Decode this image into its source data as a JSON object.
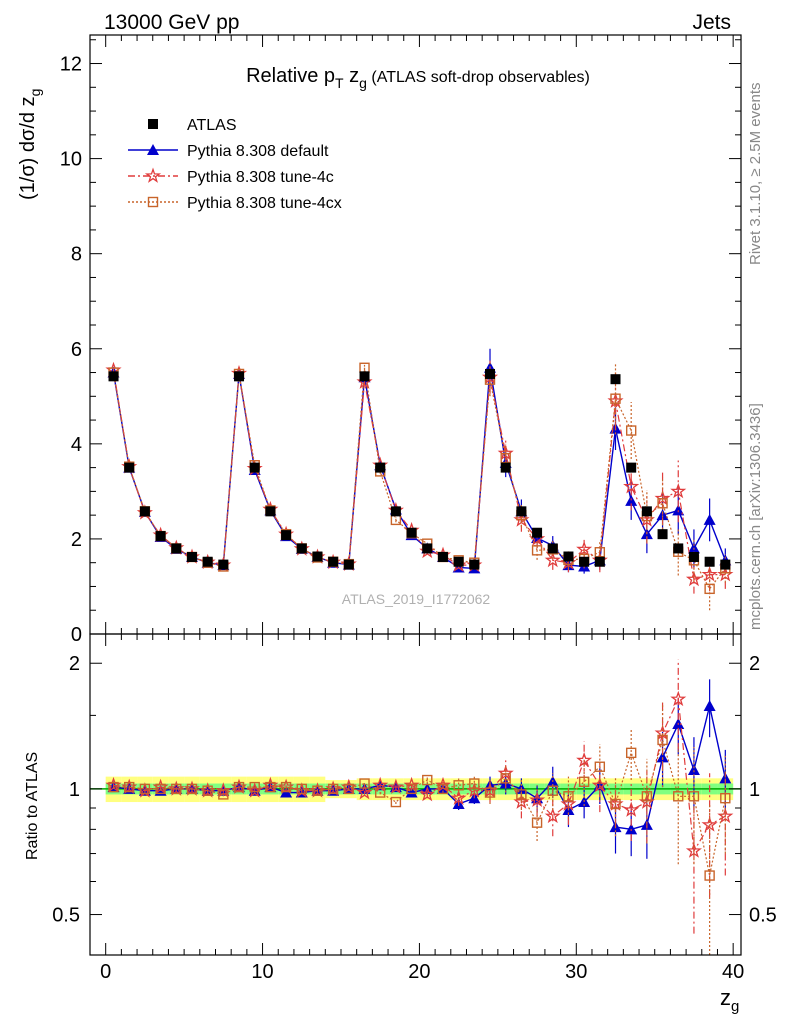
{
  "header": {
    "left": "13000 GeV pp",
    "right": "Jets"
  },
  "title": {
    "main": "Relative p",
    "sub": "T",
    "after": " z",
    "sub2": "g",
    "rest": " (ATLAS soft-drop observables)"
  },
  "side_labels": {
    "rivet": "Rivet 3.1.10, ≥ 2.5M events",
    "mcplots": "mcplots.cern.ch [arXiv:1306.3436]"
  },
  "watermark": "ATLAS_2019_I1772062",
  "colors": {
    "atlas": "#000000",
    "default": "#0000cc",
    "tune4c": "#e03c3c",
    "tune4cx": "#c8642a",
    "band_inner": "#80ff80",
    "band_outer": "#ffff80",
    "ratio_line": "#00aa00"
  },
  "chart_data": [
    {
      "type": "scatter",
      "ylabel_parts": [
        "(1/σ) dσ/d z",
        "g"
      ],
      "ylim": [
        0,
        12.6
      ],
      "yticks": [
        0,
        2,
        4,
        6,
        8,
        10,
        12
      ],
      "xlim": [
        -1,
        40.5
      ],
      "x": [
        0.5,
        1.5,
        2.5,
        3.5,
        4.5,
        5.5,
        6.5,
        7.5,
        8.5,
        9.5,
        10.5,
        11.5,
        12.5,
        13.5,
        14.5,
        15.5,
        16.5,
        17.5,
        18.5,
        19.5,
        20.5,
        21.5,
        22.5,
        23.5,
        24.5,
        25.5,
        26.5,
        27.5,
        28.5,
        29.5,
        30.5,
        31.5,
        32.5,
        33.5,
        34.5,
        35.5,
        36.5,
        37.5,
        38.5,
        39.5
      ],
      "legend": [
        "ATLAS",
        "Pythia 8.308 default",
        "Pythia 8.308 tune-4c",
        "Pythia 8.308 tune-4cx"
      ],
      "series": [
        {
          "name": "ATLAS",
          "marker": "square",
          "values": [
            5.42,
            3.5,
            2.58,
            2.06,
            1.8,
            1.62,
            1.52,
            1.46,
            5.42,
            3.5,
            2.58,
            2.08,
            1.8,
            1.63,
            1.52,
            1.46,
            5.42,
            3.5,
            2.58,
            2.13,
            1.8,
            1.62,
            1.52,
            1.46,
            5.47,
            3.5,
            2.58,
            2.13,
            1.8,
            1.63,
            1.52,
            1.52,
            5.36,
            3.5,
            2.58,
            2.1,
            1.8,
            1.62,
            1.52,
            1.46
          ]
        },
        {
          "name": "Pythia 8.308 default",
          "marker": "triangle",
          "values": [
            5.5,
            3.5,
            2.57,
            2.04,
            1.79,
            1.62,
            1.5,
            1.45,
            5.47,
            3.45,
            2.6,
            2.06,
            1.79,
            1.62,
            1.5,
            1.46,
            5.4,
            3.55,
            2.62,
            2.08,
            1.8,
            1.62,
            1.4,
            1.38,
            5.6,
            3.6,
            2.58,
            2.02,
            1.86,
            1.45,
            1.42,
            1.55,
            4.32,
            2.8,
            2.1,
            2.5,
            2.6,
            1.8,
            2.4,
            1.55
          ],
          "err": [
            0.05,
            0.05,
            0.05,
            0.04,
            0.04,
            0.04,
            0.04,
            0.04,
            0.06,
            0.05,
            0.05,
            0.04,
            0.04,
            0.04,
            0.04,
            0.04,
            0.06,
            0.05,
            0.05,
            0.04,
            0.04,
            0.04,
            0.06,
            0.06,
            0.4,
            0.3,
            0.25,
            0.2,
            0.2,
            0.15,
            0.15,
            0.2,
            0.45,
            0.4,
            0.4,
            0.45,
            0.5,
            0.4,
            0.45,
            0.25
          ]
        },
        {
          "name": "Pythia 8.308 tune-4c",
          "marker": "star",
          "values": [
            5.55,
            3.52,
            2.55,
            2.08,
            1.81,
            1.62,
            1.51,
            1.45,
            5.48,
            3.48,
            2.62,
            2.1,
            1.79,
            1.62,
            1.51,
            1.47,
            5.3,
            3.55,
            2.6,
            2.18,
            1.74,
            1.66,
            1.45,
            1.45,
            5.4,
            3.8,
            2.4,
            2.0,
            1.55,
            1.5,
            1.78,
            1.55,
            4.9,
            3.1,
            2.4,
            2.85,
            3.0,
            1.15,
            1.25,
            1.25
          ],
          "err": [
            0.05,
            0.05,
            0.05,
            0.04,
            0.04,
            0.04,
            0.04,
            0.04,
            0.06,
            0.05,
            0.05,
            0.04,
            0.04,
            0.04,
            0.04,
            0.04,
            0.06,
            0.05,
            0.05,
            0.04,
            0.04,
            0.04,
            0.06,
            0.06,
            0.35,
            0.3,
            0.25,
            0.2,
            0.2,
            0.2,
            0.2,
            0.25,
            0.6,
            0.5,
            0.5,
            0.55,
            0.65,
            0.3,
            0.35,
            0.3
          ]
        },
        {
          "name": "Pythia 8.308 tune-4cx",
          "marker": "open-square",
          "values": [
            5.5,
            3.52,
            2.58,
            2.06,
            1.8,
            1.62,
            1.5,
            1.42,
            5.47,
            3.55,
            2.6,
            2.1,
            1.8,
            1.61,
            1.52,
            1.47,
            5.6,
            3.42,
            2.4,
            2.12,
            1.9,
            1.62,
            1.55,
            1.5,
            5.35,
            3.7,
            2.5,
            1.76,
            1.78,
            1.56,
            1.58,
            1.72,
            4.95,
            4.28,
            2.48,
            2.75,
            1.73,
            1.55,
            0.95,
            1.38
          ],
          "err": [
            0.05,
            0.05,
            0.05,
            0.04,
            0.04,
            0.04,
            0.04,
            0.04,
            0.06,
            0.05,
            0.05,
            0.04,
            0.04,
            0.04,
            0.04,
            0.04,
            0.06,
            0.05,
            0.05,
            0.04,
            0.04,
            0.04,
            0.06,
            0.06,
            0.35,
            0.3,
            0.25,
            0.2,
            0.2,
            0.2,
            0.2,
            0.25,
            0.75,
            0.6,
            0.55,
            0.55,
            0.5,
            0.45,
            0.45,
            0.3
          ]
        }
      ]
    },
    {
      "type": "scatter",
      "ylabel": "Ratio to ATLAS",
      "yscale": "log",
      "ylim": [
        0.4,
        2.35
      ],
      "yticks": [
        0.5,
        1,
        2
      ],
      "xlabel_parts": [
        "z",
        "g"
      ],
      "xlim": [
        -1,
        40.5
      ],
      "xticks": [
        0,
        10,
        20,
        30,
        40
      ],
      "band_inner": [
        0.03,
        0.03,
        0.03,
        0.03,
        0.03,
        0.03,
        0.03,
        0.03,
        0.03,
        0.03,
        0.03,
        0.03,
        0.03,
        0.03,
        0.03,
        0.03,
        0.03,
        0.03,
        0.03,
        0.03,
        0.03,
        0.03,
        0.03,
        0.03,
        0.03,
        0.03,
        0.03,
        0.03,
        0.03,
        0.03,
        0.03,
        0.03,
        0.03,
        0.03,
        0.03,
        0.03,
        0.03,
        0.03,
        0.03,
        0.03
      ],
      "band_outer": [
        0.07,
        0.07,
        0.07,
        0.07,
        0.07,
        0.07,
        0.07,
        0.07,
        0.07,
        0.07,
        0.07,
        0.07,
        0.07,
        0.07,
        0.05,
        0.05,
        0.06,
        0.06,
        0.06,
        0.06,
        0.06,
        0.06,
        0.06,
        0.06,
        0.06,
        0.06,
        0.06,
        0.06,
        0.06,
        0.06,
        0.06,
        0.06,
        0.06,
        0.06,
        0.06,
        0.06,
        0.06,
        0.06,
        0.06,
        0.06
      ],
      "series": [
        {
          "name": "Pythia 8.308 default",
          "values": [
            1.01,
            1.0,
            0.99,
            0.99,
            1.0,
            1.0,
            0.99,
            0.99,
            1.01,
            0.99,
            1.01,
            0.98,
            0.98,
            0.99,
            0.99,
            1.0,
            1.0,
            1.02,
            1.01,
            0.98,
            1.0,
            1.0,
            0.92,
            0.95,
            1.02,
            1.03,
            1.0,
            0.95,
            1.04,
            0.89,
            0.93,
            1.02,
            0.81,
            0.8,
            0.82,
            1.19,
            1.43,
            1.11,
            1.58,
            1.06
          ],
          "err": [
            0.01,
            0.01,
            0.01,
            0.01,
            0.01,
            0.01,
            0.01,
            0.01,
            0.01,
            0.01,
            0.01,
            0.01,
            0.01,
            0.01,
            0.01,
            0.01,
            0.01,
            0.01,
            0.01,
            0.01,
            0.01,
            0.01,
            0.03,
            0.03,
            0.05,
            0.06,
            0.06,
            0.07,
            0.09,
            0.08,
            0.08,
            0.1,
            0.11,
            0.11,
            0.14,
            0.18,
            0.22,
            0.22,
            0.25,
            0.18
          ]
        },
        {
          "name": "Pythia 8.308 tune-4c",
          "values": [
            1.02,
            1.01,
            0.99,
            1.01,
            1.0,
            1.0,
            0.99,
            0.99,
            1.01,
            0.99,
            1.02,
            1.01,
            0.99,
            0.99,
            1.0,
            1.01,
            0.98,
            1.02,
            1.01,
            1.02,
            0.97,
            1.02,
            0.95,
            0.99,
            0.99,
            1.09,
            0.93,
            0.94,
            0.86,
            0.92,
            1.17,
            1.02,
            0.92,
            0.89,
            0.93,
            1.36,
            1.64,
            0.71,
            0.82,
            0.86
          ],
          "err": [
            0.01,
            0.01,
            0.01,
            0.01,
            0.01,
            0.01,
            0.01,
            0.01,
            0.01,
            0.01,
            0.01,
            0.01,
            0.01,
            0.01,
            0.01,
            0.01,
            0.01,
            0.01,
            0.01,
            0.01,
            0.02,
            0.02,
            0.04,
            0.04,
            0.06,
            0.08,
            0.08,
            0.08,
            0.09,
            0.1,
            0.13,
            0.14,
            0.11,
            0.14,
            0.19,
            0.25,
            0.4,
            0.26,
            0.27,
            0.24
          ]
        },
        {
          "name": "Pythia 8.308 tune-4cx",
          "values": [
            1.01,
            1.01,
            1.0,
            1.0,
            1.0,
            1.0,
            0.99,
            0.97,
            1.01,
            1.01,
            1.01,
            1.01,
            1.0,
            0.99,
            1.0,
            1.0,
            1.03,
            0.98,
            0.93,
            1.0,
            1.05,
            1.0,
            1.02,
            1.03,
            0.98,
            1.06,
            0.97,
            0.83,
            0.99,
            0.96,
            1.04,
            1.13,
            0.92,
            1.22,
            0.96,
            1.31,
            0.96,
            0.96,
            0.62,
            0.95
          ],
          "err": [
            0.01,
            0.01,
            0.01,
            0.01,
            0.01,
            0.01,
            0.01,
            0.01,
            0.01,
            0.01,
            0.01,
            0.01,
            0.01,
            0.01,
            0.01,
            0.01,
            0.01,
            0.01,
            0.01,
            0.01,
            0.02,
            0.02,
            0.04,
            0.04,
            0.06,
            0.08,
            0.08,
            0.08,
            0.1,
            0.11,
            0.13,
            0.15,
            0.15,
            0.17,
            0.22,
            0.3,
            0.3,
            0.3,
            0.3,
            0.25
          ]
        }
      ]
    }
  ]
}
